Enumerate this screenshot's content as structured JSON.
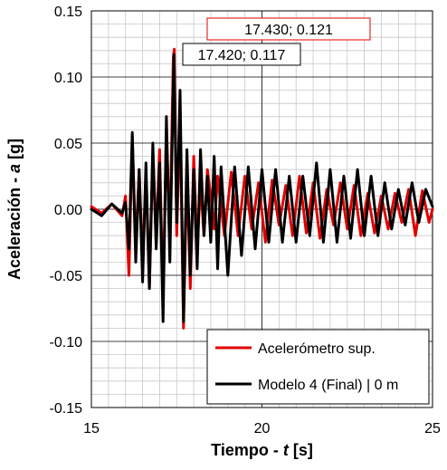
{
  "chart_data": {
    "type": "line",
    "xlabel": "Tiempo - t [s]",
    "xlabel_parts": [
      "Tiempo - ",
      "t",
      " [s]"
    ],
    "ylabel": "Aceleración - a [g]",
    "ylabel_parts": [
      "Aceleración - ",
      "a",
      " [g]"
    ],
    "xlim": [
      15,
      25
    ],
    "ylim": [
      -0.15,
      0.15
    ],
    "x_ticks": [
      15,
      20,
      25
    ],
    "x_tick_labels": [
      "15",
      "20",
      "25"
    ],
    "y_ticks": [
      -0.15,
      -0.1,
      -0.05,
      0.0,
      0.05,
      0.1,
      0.15
    ],
    "y_tick_labels": [
      "-0.15",
      "-0.10",
      "-0.05",
      "0.00",
      "0.05",
      "0.10",
      "0.15"
    ],
    "grid": true,
    "legend_position": "bottom-right",
    "series": [
      {
        "name": "Acelerómetro sup.",
        "color": "#e00000",
        "x": [
          15.0,
          15.3,
          15.6,
          15.9,
          16.0,
          16.1,
          16.2,
          16.3,
          16.4,
          16.5,
          16.6,
          16.7,
          16.8,
          16.9,
          17.0,
          17.1,
          17.2,
          17.3,
          17.4,
          17.43,
          17.5,
          17.6,
          17.7,
          17.8,
          17.9,
          18.0,
          18.1,
          18.2,
          18.3,
          18.4,
          18.5,
          18.6,
          18.7,
          18.9,
          19.1,
          19.3,
          19.5,
          19.7,
          19.9,
          20.1,
          20.3,
          20.5,
          20.7,
          20.9,
          21.1,
          21.3,
          21.5,
          21.7,
          21.9,
          22.1,
          22.3,
          22.5,
          22.7,
          22.9,
          23.1,
          23.3,
          23.5,
          23.7,
          23.9,
          24.1,
          24.3,
          24.5,
          24.7,
          24.9,
          25.0
        ],
        "y": [
          0.002,
          -0.003,
          0.004,
          -0.005,
          0.01,
          -0.05,
          0.055,
          -0.03,
          0.03,
          -0.04,
          0.025,
          -0.06,
          0.04,
          -0.02,
          0.045,
          -0.07,
          0.06,
          -0.02,
          0.115,
          0.121,
          -0.02,
          0.07,
          -0.09,
          0.03,
          -0.06,
          0.04,
          -0.03,
          0.02,
          -0.02,
          0.03,
          0.01,
          -0.015,
          0.025,
          -0.02,
          0.028,
          -0.02,
          0.025,
          -0.015,
          0.02,
          -0.025,
          0.022,
          -0.012,
          0.018,
          -0.02,
          0.025,
          -0.018,
          0.02,
          -0.022,
          0.015,
          -0.012,
          0.02,
          -0.015,
          0.018,
          -0.02,
          0.012,
          -0.018,
          0.01,
          -0.015,
          0.012,
          -0.01,
          0.015,
          -0.02,
          0.014,
          -0.01,
          0.0
        ]
      },
      {
        "name": "Modelo 4 (Final) | 0 m",
        "color": "#000000",
        "x": [
          15.0,
          15.3,
          15.6,
          15.9,
          16.0,
          16.1,
          16.2,
          16.3,
          16.4,
          16.5,
          16.6,
          16.7,
          16.8,
          16.9,
          17.0,
          17.1,
          17.2,
          17.3,
          17.42,
          17.5,
          17.6,
          17.7,
          17.8,
          17.9,
          18.0,
          18.1,
          18.2,
          18.3,
          18.4,
          18.5,
          18.6,
          18.7,
          18.8,
          19.0,
          19.2,
          19.4,
          19.6,
          19.8,
          20.0,
          20.2,
          20.4,
          20.6,
          20.8,
          21.0,
          21.2,
          21.4,
          21.6,
          21.8,
          22.0,
          22.2,
          22.4,
          22.6,
          22.8,
          23.0,
          23.2,
          23.4,
          23.6,
          23.8,
          24.0,
          24.2,
          24.4,
          24.6,
          24.8,
          25.0
        ],
        "y": [
          0.0,
          -0.005,
          0.004,
          -0.003,
          0.005,
          -0.03,
          0.058,
          -0.04,
          0.03,
          -0.055,
          0.035,
          -0.06,
          0.05,
          -0.03,
          0.035,
          -0.085,
          0.07,
          -0.04,
          0.117,
          -0.01,
          0.09,
          -0.085,
          0.045,
          -0.05,
          0.03,
          -0.045,
          0.045,
          -0.02,
          0.025,
          -0.025,
          0.04,
          -0.045,
          0.032,
          -0.05,
          0.032,
          -0.035,
          0.032,
          -0.03,
          0.03,
          -0.025,
          0.03,
          -0.025,
          0.025,
          -0.025,
          0.025,
          -0.02,
          0.035,
          -0.025,
          0.03,
          -0.025,
          0.025,
          -0.022,
          0.03,
          -0.02,
          0.025,
          -0.02,
          0.02,
          -0.015,
          0.015,
          -0.012,
          0.02,
          -0.01,
          0.015,
          0.002
        ]
      }
    ],
    "annotations": [
      {
        "label": "17.430; 0.121",
        "x": 17.43,
        "y": 0.121,
        "border_color": "#e00000"
      },
      {
        "label": "17.420; 0.117",
        "x": 17.42,
        "y": 0.117,
        "border_color": "#000000"
      }
    ]
  }
}
